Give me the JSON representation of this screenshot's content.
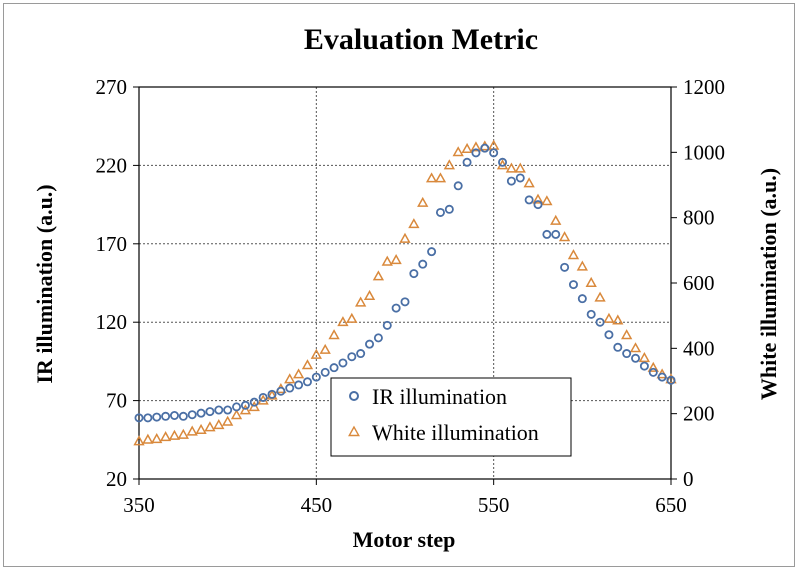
{
  "chart_data": {
    "type": "scatter",
    "title": "Evaluation Metric",
    "xlabel": "Motor step",
    "ylabel_left": "IR illumination (a.u.)",
    "ylabel_right": "White illumination  (a.u.)",
    "xlim": [
      350,
      650
    ],
    "ylim_left": [
      20,
      270
    ],
    "ylim_right": [
      0,
      1200
    ],
    "x_ticks": [
      "350",
      "450",
      "550",
      "650"
    ],
    "y_left_ticks": [
      "20",
      "70",
      "120",
      "170",
      "220",
      "270"
    ],
    "y_right_ticks": [
      "0",
      "200",
      "400",
      "600",
      "800",
      "1000",
      "1200"
    ],
    "grid": "dashed",
    "legend_position": "lower-center",
    "series": [
      {
        "name": "IR illumination",
        "axis": "left",
        "marker": "circle",
        "color": "#4a6fa5",
        "x": [
          350,
          355,
          360,
          365,
          370,
          375,
          380,
          385,
          390,
          395,
          400,
          405,
          410,
          415,
          420,
          425,
          430,
          435,
          440,
          445,
          450,
          455,
          460,
          465,
          470,
          475,
          480,
          485,
          490,
          495,
          500,
          505,
          510,
          515,
          520,
          525,
          530,
          535,
          540,
          545,
          550,
          555,
          560,
          565,
          570,
          575,
          580,
          585,
          590,
          595,
          600,
          605,
          610,
          615,
          620,
          625,
          630,
          635,
          640,
          645,
          650
        ],
        "y": [
          59,
          59,
          59.5,
          60,
          60.5,
          60,
          61,
          62,
          63,
          64,
          64,
          66,
          67,
          69,
          72,
          74,
          76,
          78,
          80,
          82,
          85,
          88,
          91,
          94,
          98,
          100,
          106,
          110,
          118,
          129,
          133,
          151,
          157,
          165,
          190,
          192,
          207,
          222,
          228,
          231,
          228,
          222,
          210,
          212,
          198,
          195,
          176,
          176,
          155,
          144,
          135,
          125,
          120,
          112,
          104,
          100,
          97,
          92,
          88,
          85,
          83
        ]
      },
      {
        "name": "White illumination",
        "axis": "right",
        "marker": "triangle",
        "color": "#d9893c",
        "x": [
          350,
          355,
          360,
          365,
          370,
          375,
          380,
          385,
          390,
          395,
          400,
          405,
          410,
          415,
          420,
          425,
          430,
          435,
          440,
          445,
          450,
          455,
          460,
          465,
          470,
          475,
          480,
          485,
          490,
          495,
          500,
          505,
          510,
          515,
          520,
          525,
          530,
          535,
          540,
          545,
          550,
          555,
          560,
          565,
          570,
          575,
          580,
          585,
          590,
          595,
          600,
          605,
          610,
          615,
          620,
          625,
          630,
          635,
          640,
          645,
          650
        ],
        "y": [
          115,
          120,
          122,
          128,
          132,
          135,
          145,
          150,
          158,
          165,
          175,
          195,
          210,
          220,
          240,
          255,
          275,
          305,
          320,
          348,
          380,
          395,
          440,
          480,
          490,
          540,
          560,
          620,
          665,
          670,
          735,
          780,
          845,
          920,
          920,
          960,
          1000,
          1010,
          1015,
          1018,
          1020,
          960,
          950,
          950,
          905,
          855,
          850,
          790,
          740,
          685,
          650,
          600,
          555,
          490,
          485,
          440,
          400,
          370,
          340,
          320,
          305
        ]
      }
    ]
  }
}
